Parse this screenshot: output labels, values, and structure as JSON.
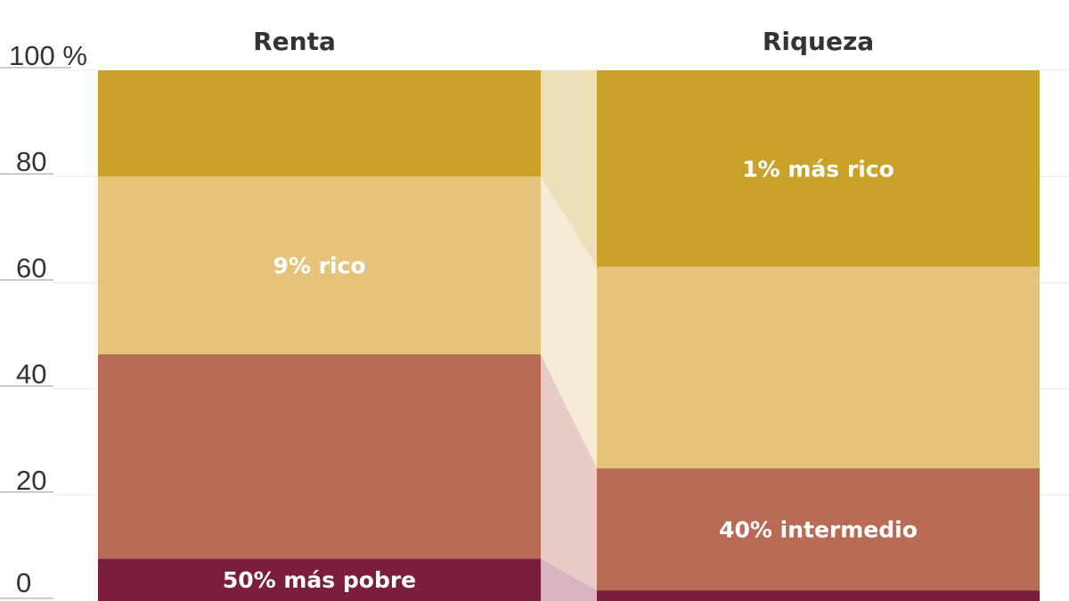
{
  "chart_data": {
    "type": "bar",
    "stacked": true,
    "normalized": true,
    "y_ticks": [
      "0",
      "20",
      "40",
      "60",
      "80",
      "100 %"
    ],
    "ylim": [
      0,
      100
    ],
    "grid": true,
    "categories": [
      "Renta",
      "Riqueza"
    ],
    "segments": [
      {
        "key": "bottom50",
        "label": "50% más pobre",
        "color": "#7b1e3e",
        "values": [
          8,
          2
        ]
      },
      {
        "key": "middle40",
        "label": "40% intermedio",
        "color": "#ba6b55",
        "values": [
          38.5,
          23
        ]
      },
      {
        "key": "rich9",
        "label": "9% rico",
        "color": "#e6c37a",
        "values": [
          33.5,
          38
        ]
      },
      {
        "key": "top1",
        "label": "1% más rico",
        "color": "#c9a227",
        "values": [
          20,
          37
        ]
      }
    ],
    "segment_labels": [
      {
        "segment": "bottom50",
        "column": "Renta",
        "text": "50% más pobre"
      },
      {
        "segment": "rich9",
        "column": "Renta",
        "text": "9% rico"
      },
      {
        "segment": "middle40",
        "column": "Riqueza",
        "text": "40% intermedio"
      },
      {
        "segment": "top1",
        "column": "Riqueza",
        "text": "1% más rico"
      }
    ],
    "connector_colors": {
      "bottom50": "#d8b4c0",
      "middle40": "#e9cbc6",
      "rich9": "#f5ebd6",
      "top1": "#ecdfb8"
    },
    "grid_color": "#e9e9e9",
    "axis_color": "#999999"
  }
}
